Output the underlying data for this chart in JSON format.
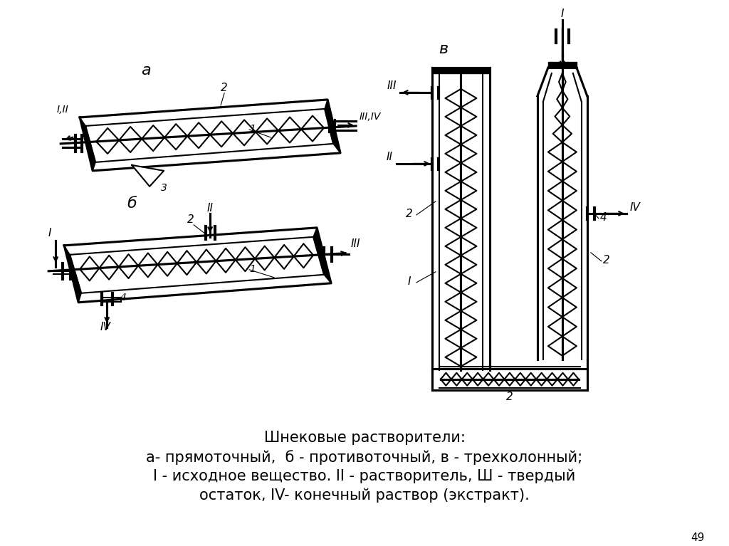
{
  "title_line1": "Шнековые растворители:",
  "title_line2": "а- прямоточный,  б - противоточный, в - трехколонный;",
  "title_line3": "I - исходное вещество. II - растворитель, Ш - твердый",
  "title_line4": "остаток, IV- конечный раствор (экстракт).",
  "page_number": "49",
  "bg_color": "#ffffff",
  "line_color": "#000000",
  "font_size_caption": 15,
  "font_size_label": 11
}
